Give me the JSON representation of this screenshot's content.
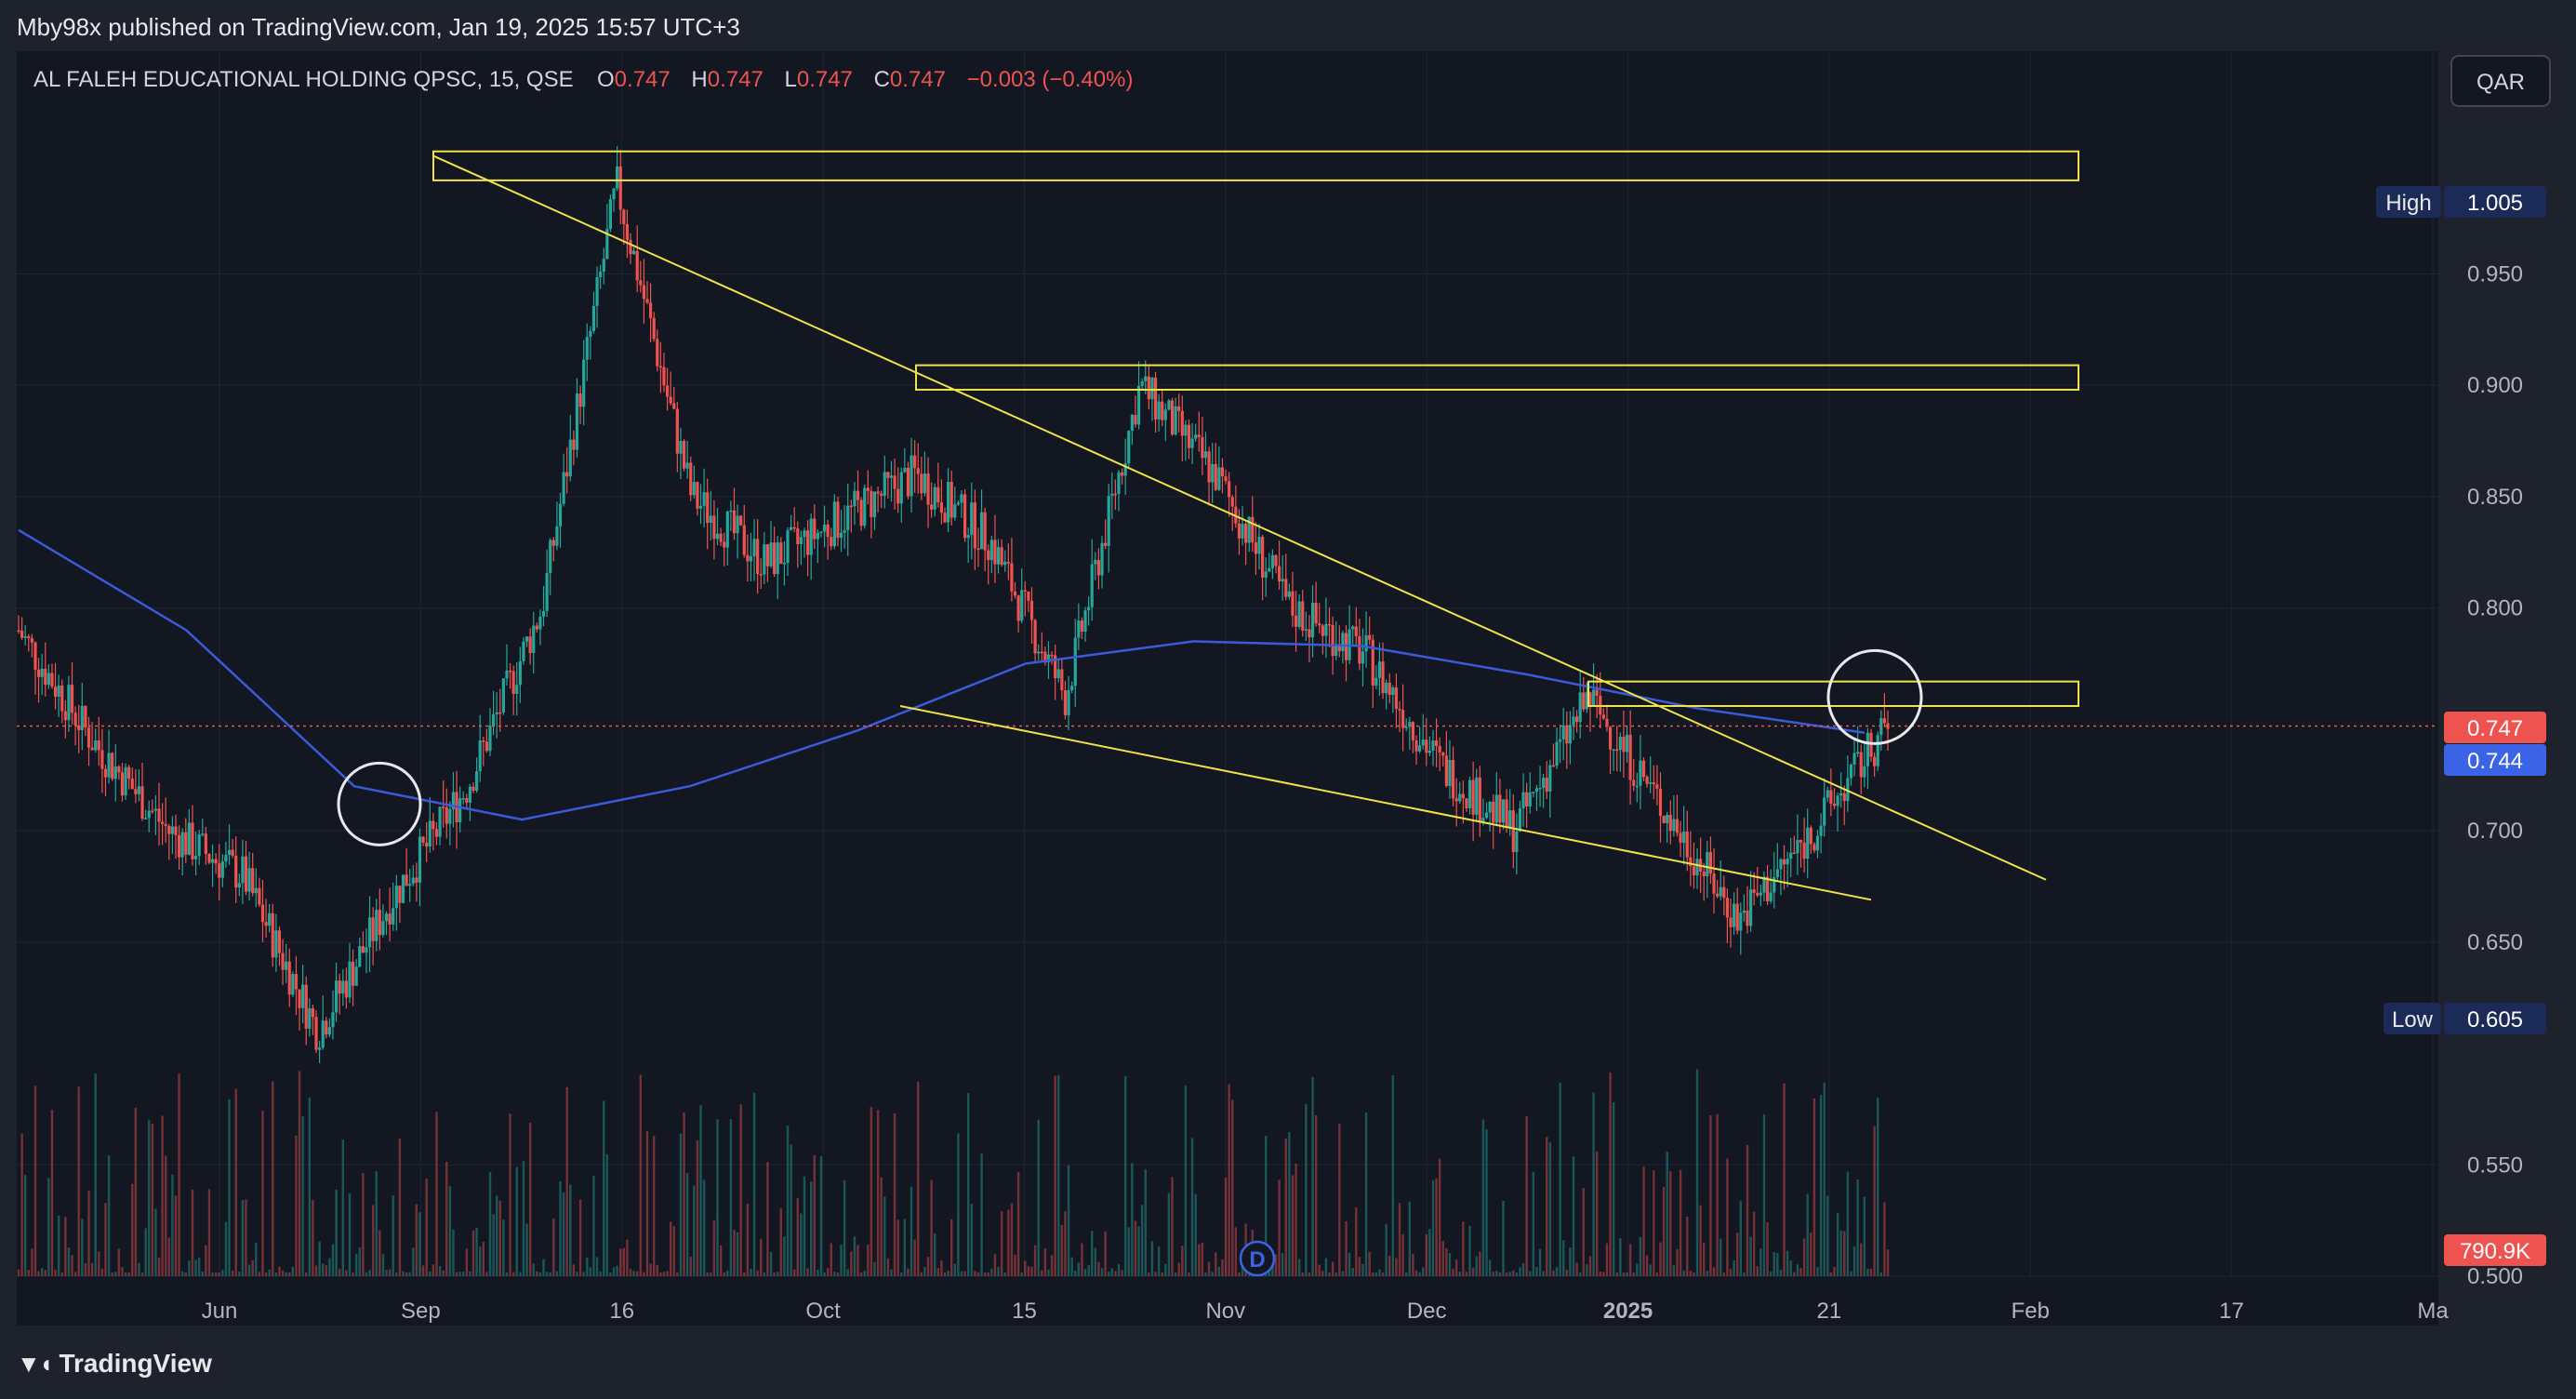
{
  "header": {
    "published": "Mby98x published on TradingView.com, Jan 19, 2025 15:57 UTC+3"
  },
  "footer": {
    "logo_text": "TradingView"
  },
  "currency_button": "QAR",
  "legend": {
    "symbol": "AL FALEH EDUCATIONAL HOLDING QPSC, 15, QSE",
    "o_label": "O",
    "o": "0.747",
    "h_label": "H",
    "h": "0.747",
    "l_label": "L",
    "l": "0.747",
    "c_label": "C",
    "c": "0.747",
    "change": "−0.003 (−0.40%)"
  },
  "markers": {
    "high_label": "High",
    "high_value": "1.005",
    "low_label": "Low",
    "low_value": "0.605",
    "last_price": "0.747",
    "ma_value": "0.744",
    "volume": "790.9K",
    "dividend": "D"
  },
  "colors": {
    "background": "#131722",
    "up": "#26a69a",
    "down": "#ef5350",
    "ma": "#3a5bd9",
    "drawing": "#f0e24a",
    "price_line": "#ef5350"
  },
  "chart_data": {
    "type": "candlestick",
    "title": "AL FALEH EDUCATIONAL HOLDING QPSC, 15, QSE",
    "ylim": [
      0.5,
      1.05
    ],
    "y_ticks": [
      "0.950",
      "0.900",
      "0.850",
      "0.800",
      "0.700",
      "0.650",
      "0.550",
      "0.500"
    ],
    "x_ticks": [
      "Jun",
      "Sep",
      "16",
      "Oct",
      "15",
      "Nov",
      "Dec",
      "2025",
      "21",
      "Feb",
      "17",
      "Ma"
    ],
    "price_path": [
      {
        "date": "May",
        "price": 0.79
      },
      {
        "date": "May",
        "price": 0.74
      },
      {
        "date": "May",
        "price": 0.7
      },
      {
        "date": "Jun",
        "price": 0.68
      },
      {
        "date": "Jun",
        "price": 0.61
      },
      {
        "date": "Jul",
        "price": 0.67
      },
      {
        "date": "Jul",
        "price": 0.72
      },
      {
        "date": "Aug",
        "price": 0.8
      },
      {
        "date": "Aug",
        "price": 0.99
      },
      {
        "date": "Sep",
        "price": 0.85
      },
      {
        "date": "Sep",
        "price": 0.82
      },
      {
        "date": "16",
        "price": 0.84
      },
      {
        "date": "16",
        "price": 0.86
      },
      {
        "date": "Oct",
        "price": 0.83
      },
      {
        "date": "Oct",
        "price": 0.76
      },
      {
        "date": "15",
        "price": 0.9
      },
      {
        "date": "15",
        "price": 0.86
      },
      {
        "date": "Nov",
        "price": 0.8
      },
      {
        "date": "Nov",
        "price": 0.78
      },
      {
        "date": "Dec",
        "price": 0.73
      },
      {
        "date": "Dec",
        "price": 0.7
      },
      {
        "date": "Dec",
        "price": 0.76
      },
      {
        "date": "2025",
        "price": 0.71
      },
      {
        "date": "2025",
        "price": 0.66
      },
      {
        "date": "21",
        "price": 0.7
      },
      {
        "date": "21",
        "price": 0.747
      }
    ],
    "moving_average": [
      0.835,
      0.79,
      0.72,
      0.705,
      0.72,
      0.745,
      0.775,
      0.785,
      0.783,
      0.77,
      0.755,
      0.744
    ],
    "zones": [
      {
        "top": 1.005,
        "bottom": 0.992
      },
      {
        "top": 0.909,
        "bottom": 0.898
      },
      {
        "top": 0.767,
        "bottom": 0.756
      }
    ],
    "last_price": 0.747,
    "high": 1.005,
    "low": 0.605
  }
}
